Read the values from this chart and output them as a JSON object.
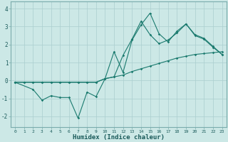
{
  "xlabel": "Humidex (Indice chaleur)",
  "ylabel": "",
  "bg_color": "#cce8e6",
  "line_color": "#1a7a6e",
  "grid_color": "#aacece",
  "xlim": [
    -0.5,
    23.5
  ],
  "ylim": [
    -2.6,
    4.4
  ],
  "xticks": [
    0,
    1,
    2,
    3,
    4,
    5,
    6,
    7,
    8,
    9,
    10,
    11,
    12,
    13,
    14,
    15,
    16,
    17,
    18,
    19,
    20,
    21,
    22,
    23
  ],
  "yticks": [
    -2,
    -1,
    0,
    1,
    2,
    3,
    4
  ],
  "line1_x": [
    0,
    1,
    2,
    3,
    4,
    5,
    6,
    7,
    8,
    9,
    10,
    11,
    12,
    13,
    14,
    15,
    16,
    17,
    18,
    19,
    20,
    21,
    22,
    23
  ],
  "line1_y": [
    -0.1,
    -0.1,
    -0.1,
    -0.1,
    -0.1,
    -0.1,
    -0.1,
    -0.1,
    -0.1,
    -0.1,
    0.1,
    0.2,
    0.3,
    0.5,
    0.65,
    0.8,
    0.95,
    1.1,
    1.25,
    1.35,
    1.45,
    1.5,
    1.55,
    1.6
  ],
  "line2_x": [
    0,
    2,
    3,
    4,
    5,
    6,
    7,
    8,
    9,
    10,
    11,
    12,
    13,
    14,
    15,
    16,
    17,
    18,
    19,
    20,
    21,
    22,
    23
  ],
  "line2_y": [
    -0.1,
    -0.5,
    -1.1,
    -0.85,
    -0.95,
    -0.95,
    -2.1,
    -0.65,
    -0.9,
    0.1,
    1.6,
    0.45,
    2.25,
    3.1,
    3.75,
    2.6,
    2.15,
    2.75,
    3.15,
    2.5,
    2.3,
    1.85,
    1.45
  ],
  "line3_x": [
    0,
    1,
    2,
    3,
    4,
    5,
    6,
    7,
    8,
    9,
    10,
    11,
    12,
    13,
    14,
    15,
    16,
    17,
    18,
    19,
    20,
    21,
    22,
    23
  ],
  "line3_y": [
    -0.1,
    -0.1,
    -0.1,
    -0.1,
    -0.1,
    -0.1,
    -0.1,
    -0.1,
    -0.1,
    -0.1,
    0.1,
    0.2,
    1.4,
    2.3,
    3.3,
    2.55,
    2.05,
    2.25,
    2.65,
    3.15,
    2.55,
    2.35,
    1.9,
    1.45
  ]
}
